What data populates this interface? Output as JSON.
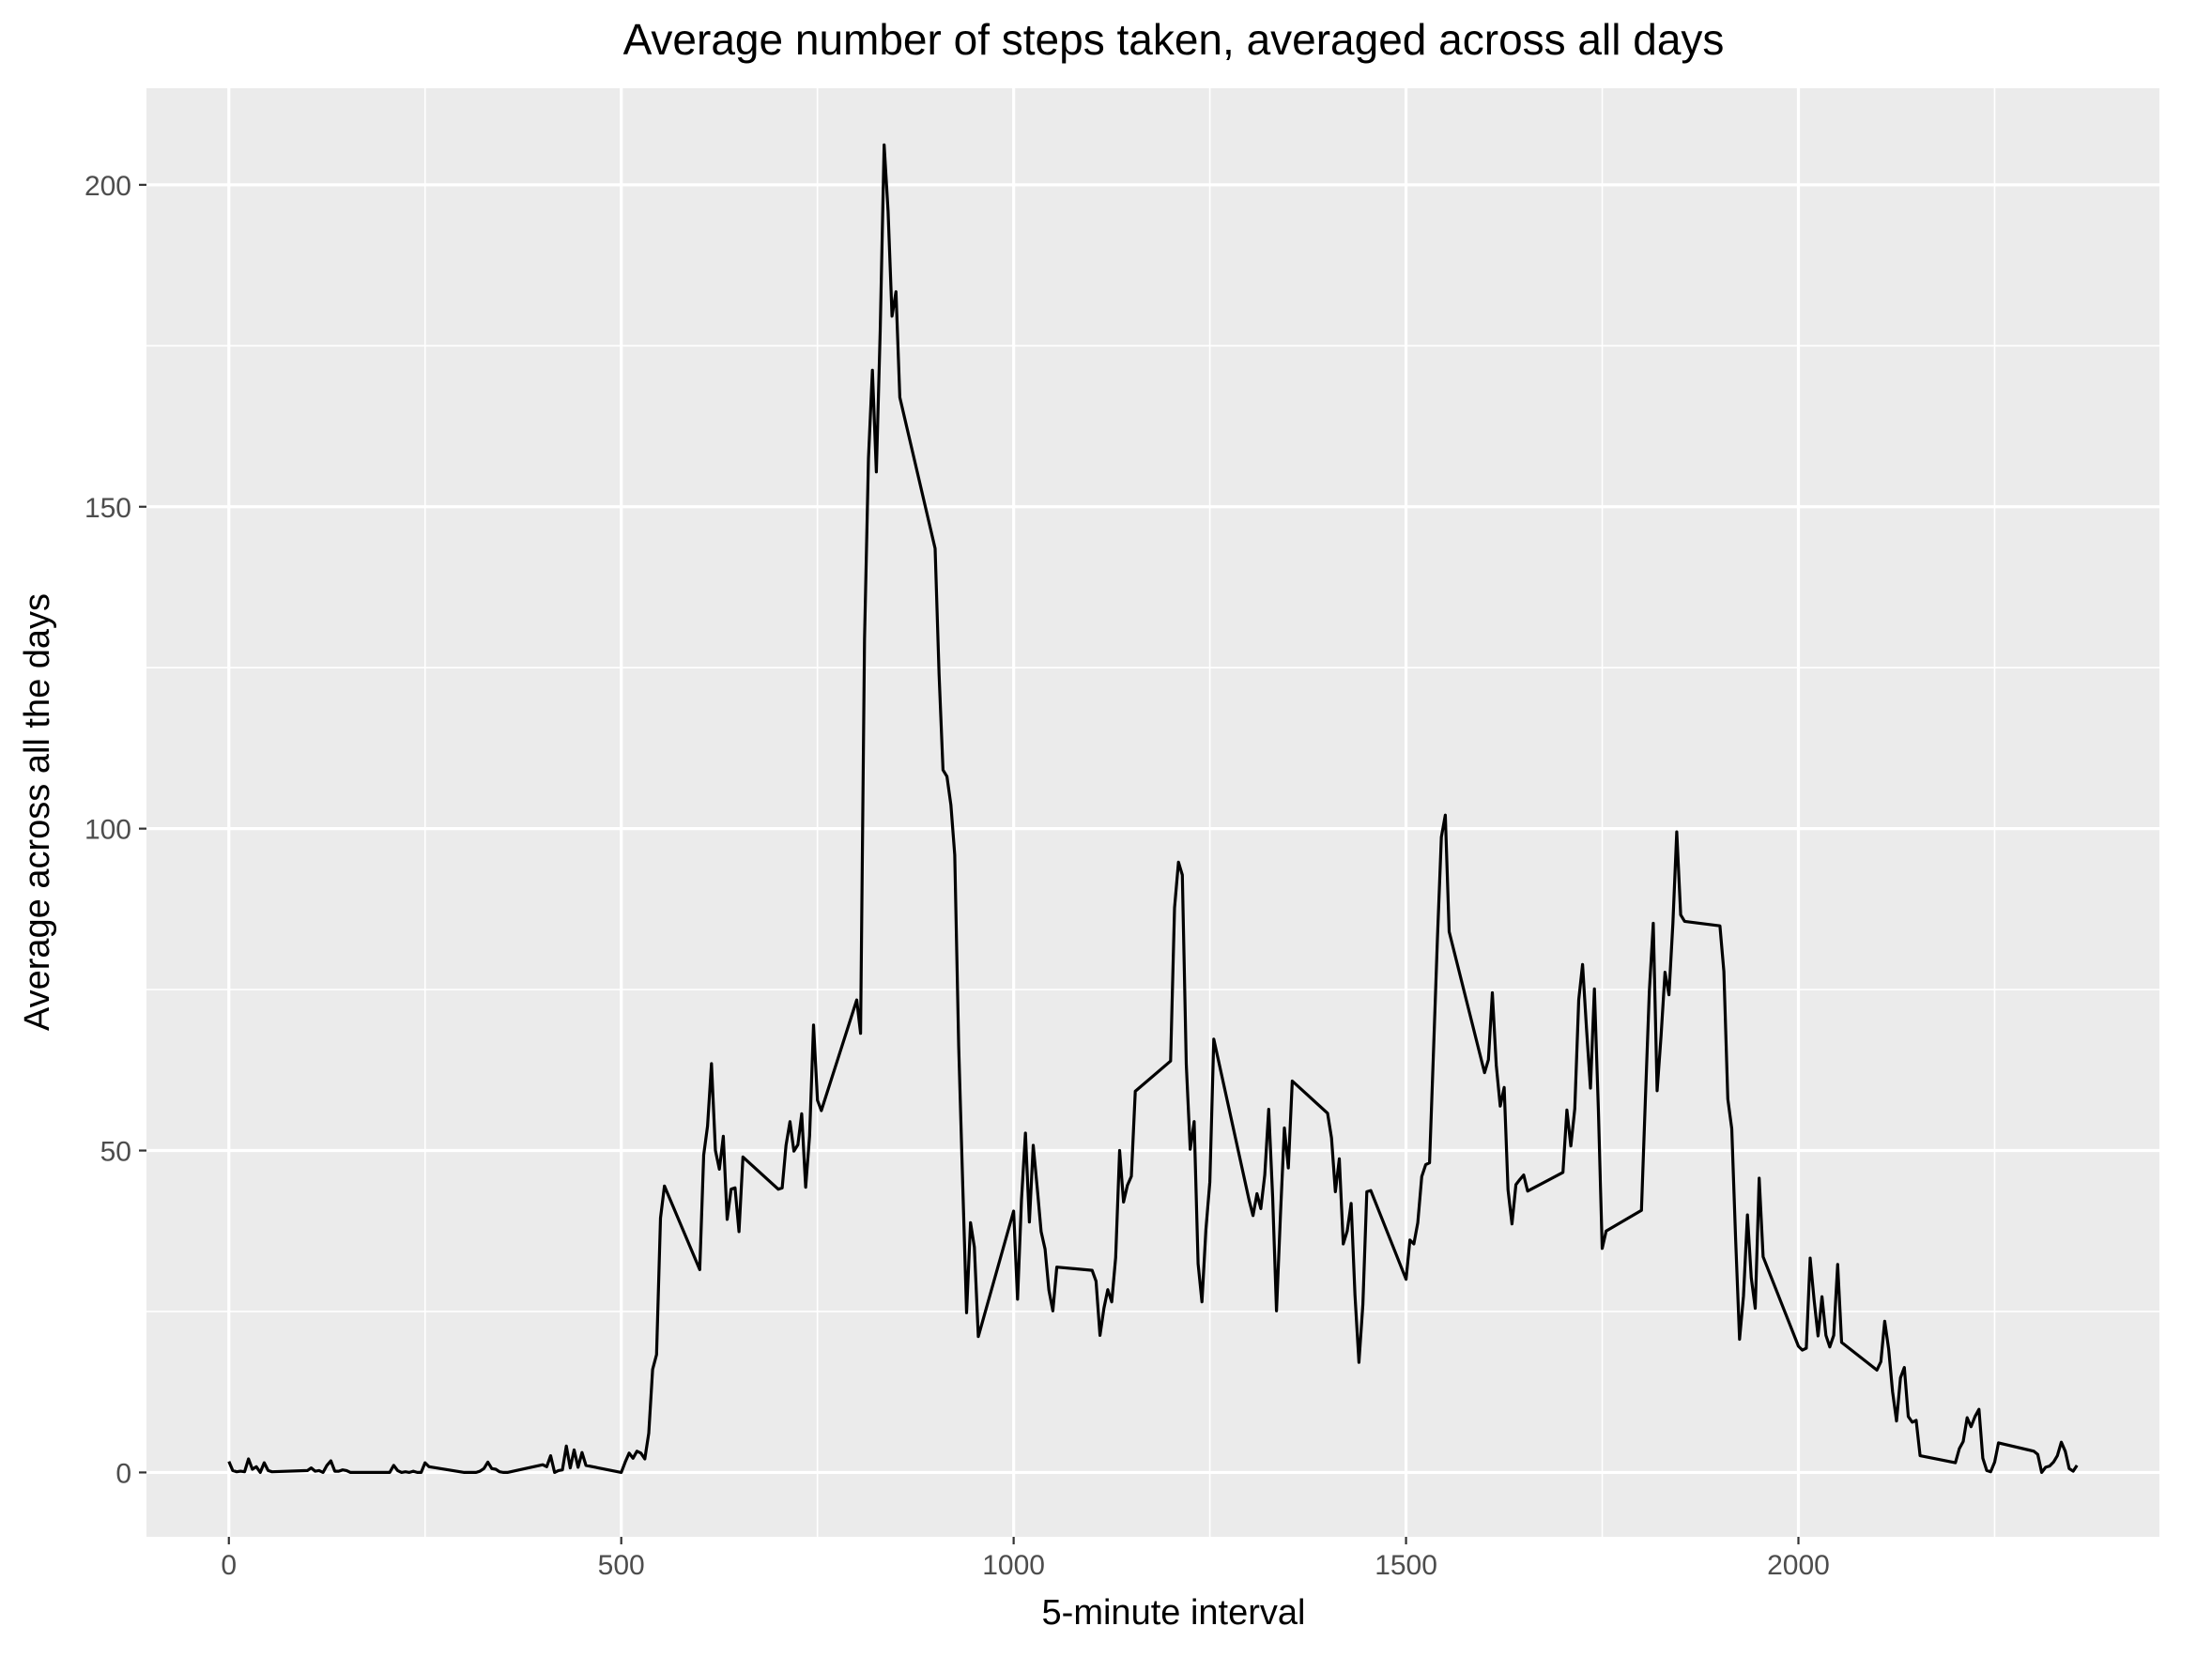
{
  "chart_data": {
    "type": "line",
    "title": "Average number of steps taken, averaged across all days",
    "xlabel": "5-minute interval",
    "ylabel": "Average across all the days",
    "xlim": [
      -105,
      2460
    ],
    "ylim": [
      -10,
      215
    ],
    "x_ticks": [
      0,
      500,
      1000,
      1500,
      2000
    ],
    "x_tick_labels": [
      "0",
      "500",
      "1000",
      "1500",
      "2000"
    ],
    "x_minor_ticks": [
      250,
      750,
      1250,
      1750,
      2250
    ],
    "y_ticks": [
      0,
      50,
      100,
      150,
      200
    ],
    "y_tick_labels": [
      "0",
      "50",
      "100",
      "150",
      "200"
    ],
    "y_minor_ticks": [
      25,
      75,
      125,
      175
    ],
    "grid": true,
    "colors": {
      "panel": "#ebebeb",
      "grid": "#ffffff",
      "line": "#000000",
      "tick_text": "#4d4d4d"
    },
    "series": [
      {
        "points": [
          [
            0,
            1.7
          ],
          [
            5,
            0.3
          ],
          [
            10,
            0.1
          ],
          [
            15,
            0.2
          ],
          [
            20,
            0.1
          ],
          [
            25,
            2.1
          ],
          [
            30,
            0.5
          ],
          [
            35,
            0.9
          ],
          [
            40,
            0.0
          ],
          [
            45,
            1.5
          ],
          [
            50,
            0.3
          ],
          [
            55,
            0.1
          ],
          [
            100,
            0.3
          ],
          [
            105,
            0.7
          ],
          [
            110,
            0.2
          ],
          [
            115,
            0.3
          ],
          [
            120,
            0.0
          ],
          [
            125,
            1.1
          ],
          [
            130,
            1.8
          ],
          [
            135,
            0.2
          ],
          [
            140,
            0.2
          ],
          [
            145,
            0.4
          ],
          [
            150,
            0.3
          ],
          [
            155,
            0.0
          ],
          [
            200,
            0.0
          ],
          [
            205,
            0.0
          ],
          [
            210,
            1.1
          ],
          [
            215,
            0.3
          ],
          [
            220,
            0.0
          ],
          [
            225,
            0.1
          ],
          [
            230,
            0.0
          ],
          [
            235,
            0.2
          ],
          [
            240,
            0.0
          ],
          [
            245,
            0.0
          ],
          [
            250,
            1.5
          ],
          [
            255,
            0.9
          ],
          [
            300,
            0.0
          ],
          [
            305,
            0.0
          ],
          [
            310,
            0.0
          ],
          [
            315,
            0.0
          ],
          [
            320,
            0.2
          ],
          [
            325,
            0.6
          ],
          [
            330,
            1.6
          ],
          [
            335,
            0.6
          ],
          [
            340,
            0.5
          ],
          [
            345,
            0.1
          ],
          [
            350,
            0.0
          ],
          [
            355,
            0.0
          ],
          [
            400,
            1.2
          ],
          [
            405,
            0.9
          ],
          [
            410,
            2.6
          ],
          [
            415,
            0.0
          ],
          [
            420,
            0.3
          ],
          [
            425,
            0.4
          ],
          [
            430,
            4.1
          ],
          [
            435,
            0.7
          ],
          [
            440,
            3.5
          ],
          [
            445,
            0.8
          ],
          [
            450,
            3.1
          ],
          [
            455,
            1.1
          ],
          [
            500,
            0.0
          ],
          [
            505,
            1.6
          ],
          [
            510,
            3.0
          ],
          [
            515,
            2.2
          ],
          [
            520,
            3.3
          ],
          [
            525,
            3.0
          ],
          [
            530,
            2.1
          ],
          [
            535,
            6.1
          ],
          [
            540,
            16.0
          ],
          [
            545,
            18.3
          ],
          [
            550,
            39.5
          ],
          [
            555,
            44.5
          ],
          [
            600,
            31.5
          ],
          [
            605,
            49.3
          ],
          [
            610,
            53.8
          ],
          [
            615,
            63.5
          ],
          [
            620,
            50.0
          ],
          [
            625,
            47.1
          ],
          [
            630,
            52.2
          ],
          [
            635,
            39.3
          ],
          [
            640,
            44.0
          ],
          [
            645,
            44.2
          ],
          [
            650,
            37.4
          ],
          [
            655,
            49.0
          ],
          [
            700,
            44.0
          ],
          [
            705,
            44.2
          ],
          [
            710,
            50.8
          ],
          [
            715,
            54.5
          ],
          [
            720,
            49.9
          ],
          [
            725,
            50.9
          ],
          [
            730,
            55.7
          ],
          [
            735,
            44.3
          ],
          [
            740,
            52.3
          ],
          [
            745,
            69.5
          ],
          [
            750,
            57.8
          ],
          [
            755,
            56.2
          ],
          [
            800,
            73.4
          ],
          [
            805,
            68.2
          ],
          [
            810,
            129.4
          ],
          [
            815,
            157.5
          ],
          [
            820,
            171.2
          ],
          [
            825,
            155.4
          ],
          [
            830,
            177.3
          ],
          [
            835,
            206.2
          ],
          [
            840,
            195.9
          ],
          [
            845,
            179.6
          ],
          [
            850,
            183.4
          ],
          [
            855,
            167.0
          ],
          [
            900,
            143.5
          ],
          [
            905,
            124.0
          ],
          [
            910,
            109.1
          ],
          [
            915,
            108.1
          ],
          [
            920,
            103.7
          ],
          [
            925,
            95.9
          ],
          [
            930,
            66.2
          ],
          [
            935,
            45.2
          ],
          [
            940,
            24.8
          ],
          [
            945,
            38.8
          ],
          [
            950,
            35.0
          ],
          [
            955,
            21.1
          ],
          [
            1000,
            40.6
          ],
          [
            1005,
            26.9
          ],
          [
            1010,
            42.4
          ],
          [
            1015,
            52.7
          ],
          [
            1020,
            38.9
          ],
          [
            1025,
            50.8
          ],
          [
            1030,
            44.3
          ],
          [
            1035,
            37.4
          ],
          [
            1040,
            34.7
          ],
          [
            1045,
            28.3
          ],
          [
            1050,
            25.1
          ],
          [
            1055,
            31.9
          ],
          [
            1100,
            31.4
          ],
          [
            1105,
            29.7
          ],
          [
            1110,
            21.3
          ],
          [
            1115,
            25.5
          ],
          [
            1120,
            28.4
          ],
          [
            1125,
            26.5
          ],
          [
            1130,
            33.4
          ],
          [
            1135,
            50.0
          ],
          [
            1140,
            42.0
          ],
          [
            1145,
            44.6
          ],
          [
            1150,
            46.0
          ],
          [
            1155,
            59.2
          ],
          [
            1200,
            63.9
          ],
          [
            1205,
            87.7
          ],
          [
            1210,
            94.8
          ],
          [
            1215,
            92.8
          ],
          [
            1220,
            63.4
          ],
          [
            1225,
            50.2
          ],
          [
            1230,
            54.5
          ],
          [
            1235,
            32.4
          ],
          [
            1240,
            26.5
          ],
          [
            1245,
            37.7
          ],
          [
            1250,
            45.1
          ],
          [
            1255,
            67.3
          ],
          [
            1300,
            42.3
          ],
          [
            1305,
            39.9
          ],
          [
            1310,
            43.3
          ],
          [
            1315,
            40.98
          ],
          [
            1320,
            46.2
          ],
          [
            1325,
            56.4
          ],
          [
            1330,
            42.8
          ],
          [
            1335,
            25.1
          ],
          [
            1340,
            39.96
          ],
          [
            1345,
            53.5
          ],
          [
            1350,
            47.3
          ],
          [
            1355,
            60.8
          ],
          [
            1400,
            55.8
          ],
          [
            1405,
            51.96
          ],
          [
            1410,
            43.6
          ],
          [
            1415,
            48.7
          ],
          [
            1420,
            35.5
          ],
          [
            1425,
            37.5
          ],
          [
            1430,
            41.8
          ],
          [
            1435,
            27.5
          ],
          [
            1440,
            17.1
          ],
          [
            1445,
            26.1
          ],
          [
            1450,
            43.6
          ],
          [
            1455,
            43.8
          ],
          [
            1500,
            30.0
          ],
          [
            1505,
            36.1
          ],
          [
            1510,
            35.5
          ],
          [
            1515,
            38.8
          ],
          [
            1520,
            45.96
          ],
          [
            1525,
            47.8
          ],
          [
            1530,
            48.1
          ],
          [
            1535,
            65.3
          ],
          [
            1540,
            82.9
          ],
          [
            1545,
            98.7
          ],
          [
            1550,
            102.1
          ],
          [
            1555,
            84.0
          ],
          [
            1600,
            62.1
          ],
          [
            1605,
            64.1
          ],
          [
            1610,
            74.5
          ],
          [
            1615,
            63.2
          ],
          [
            1620,
            56.9
          ],
          [
            1625,
            59.8
          ],
          [
            1630,
            43.9
          ],
          [
            1635,
            38.6
          ],
          [
            1640,
            44.7
          ],
          [
            1645,
            45.5
          ],
          [
            1650,
            46.2
          ],
          [
            1655,
            43.7
          ],
          [
            1700,
            46.6
          ],
          [
            1705,
            56.3
          ],
          [
            1710,
            50.7
          ],
          [
            1715,
            56.5
          ],
          [
            1720,
            73.4
          ],
          [
            1725,
            78.9
          ],
          [
            1730,
            68.9
          ],
          [
            1735,
            59.7
          ],
          [
            1740,
            75.1
          ],
          [
            1745,
            56.5
          ],
          [
            1750,
            34.8
          ],
          [
            1755,
            37.5
          ],
          [
            1800,
            40.7
          ],
          [
            1805,
            58.0
          ],
          [
            1810,
            74.7
          ],
          [
            1815,
            85.3
          ],
          [
            1820,
            59.3
          ],
          [
            1825,
            67.8
          ],
          [
            1830,
            77.7
          ],
          [
            1835,
            74.2
          ],
          [
            1840,
            85.3
          ],
          [
            1845,
            99.5
          ],
          [
            1850,
            86.6
          ],
          [
            1855,
            85.6
          ],
          [
            1900,
            84.9
          ],
          [
            1905,
            77.8
          ],
          [
            1910,
            58.0
          ],
          [
            1915,
            53.4
          ],
          [
            1920,
            36.3
          ],
          [
            1925,
            20.7
          ],
          [
            1930,
            27.4
          ],
          [
            1935,
            40.0
          ],
          [
            1940,
            30.2
          ],
          [
            1945,
            25.5
          ],
          [
            1950,
            45.7
          ],
          [
            1955,
            33.5
          ],
          [
            2000,
            19.6
          ],
          [
            2005,
            19.0
          ],
          [
            2010,
            19.3
          ],
          [
            2015,
            33.3
          ],
          [
            2020,
            26.8
          ],
          [
            2025,
            21.2
          ],
          [
            2030,
            27.3
          ],
          [
            2035,
            21.3
          ],
          [
            2040,
            19.5
          ],
          [
            2045,
            21.3
          ],
          [
            2050,
            32.3
          ],
          [
            2055,
            20.2
          ],
          [
            2100,
            15.9
          ],
          [
            2105,
            17.2
          ],
          [
            2110,
            23.5
          ],
          [
            2115,
            19.2
          ],
          [
            2120,
            12.5
          ],
          [
            2125,
            8.0
          ],
          [
            2130,
            14.7
          ],
          [
            2135,
            16.3
          ],
          [
            2140,
            8.7
          ],
          [
            2145,
            7.8
          ],
          [
            2150,
            8.1
          ],
          [
            2155,
            2.6
          ],
          [
            2200,
            1.5
          ],
          [
            2205,
            3.7
          ],
          [
            2210,
            4.8
          ],
          [
            2215,
            8.5
          ],
          [
            2220,
            7.1
          ],
          [
            2225,
            8.7
          ],
          [
            2230,
            9.8
          ],
          [
            2235,
            2.2
          ],
          [
            2240,
            0.3
          ],
          [
            2245,
            0.1
          ],
          [
            2250,
            1.6
          ],
          [
            2255,
            4.6
          ],
          [
            2300,
            3.3
          ],
          [
            2305,
            2.8
          ],
          [
            2310,
            0.0
          ],
          [
            2315,
            0.8
          ],
          [
            2320,
            1.0
          ],
          [
            2325,
            1.6
          ],
          [
            2330,
            2.6
          ],
          [
            2335,
            4.7
          ],
          [
            2340,
            3.3
          ],
          [
            2345,
            0.6
          ],
          [
            2350,
            0.2
          ],
          [
            2355,
            1.1
          ]
        ]
      }
    ]
  }
}
